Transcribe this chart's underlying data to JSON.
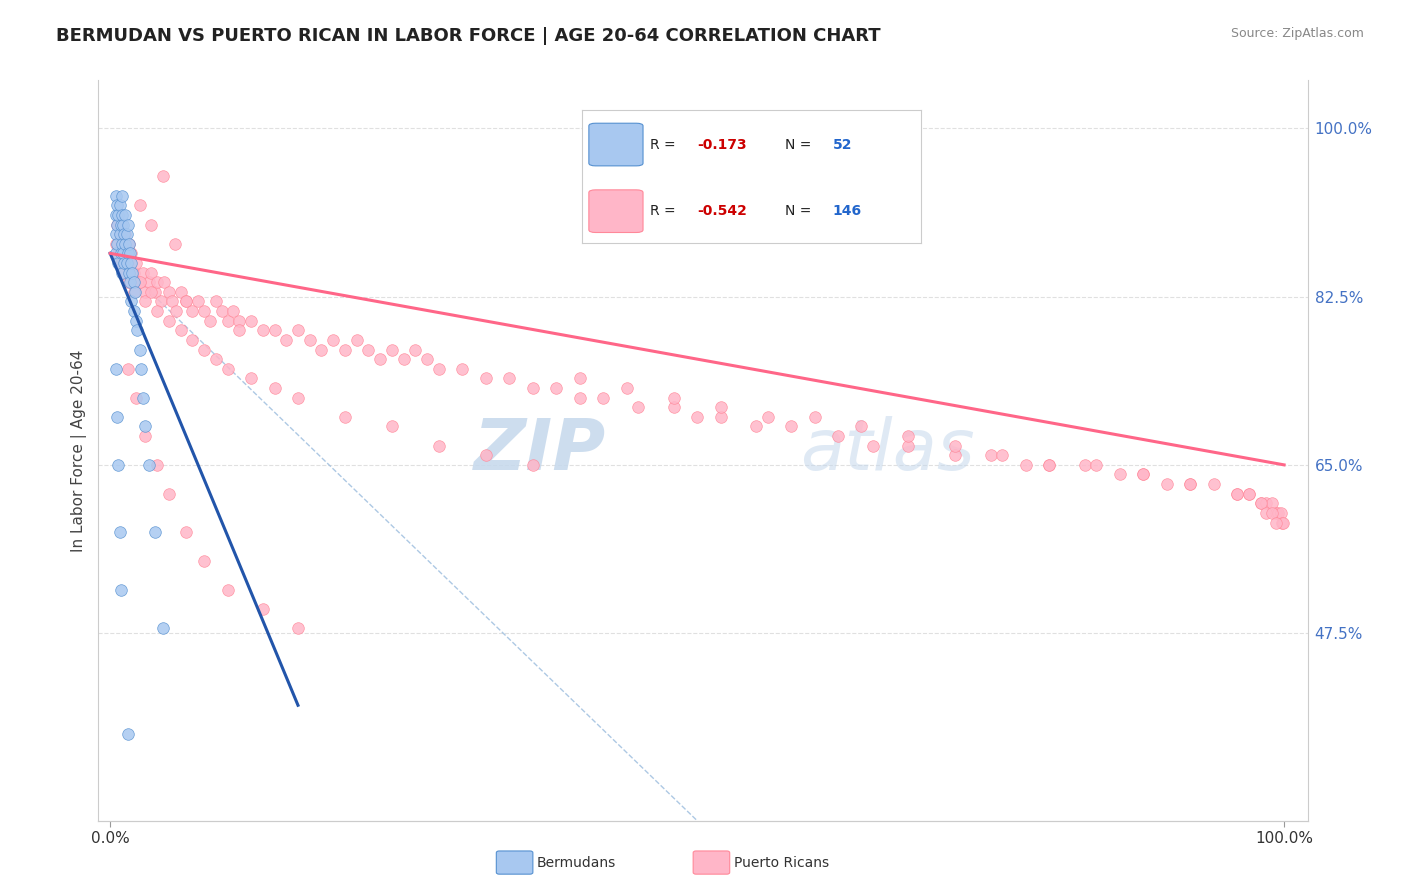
{
  "title": "BERMUDAN VS PUERTO RICAN IN LABOR FORCE | AGE 20-64 CORRELATION CHART",
  "source": "Source: ZipAtlas.com",
  "ylabel": "In Labor Force | Age 20-64",
  "xlim": [
    -0.01,
    1.02
  ],
  "ylim": [
    0.28,
    1.05
  ],
  "yticks": [
    0.475,
    0.65,
    0.825,
    1.0
  ],
  "ytick_labels": [
    "47.5%",
    "65.0%",
    "82.5%",
    "100.0%"
  ],
  "xtick_labels": [
    "0.0%",
    "100.0%"
  ],
  "legend_r_bermudan": "-0.173",
  "legend_n_bermudan": "52",
  "legend_r_puerto": "-0.542",
  "legend_n_puerto": "146",
  "color_bermudan_fill": "#a8c8f0",
  "color_bermudan_edge": "#5590d0",
  "color_bermudan_line": "#2255aa",
  "color_puerto_fill": "#ffb6c8",
  "color_puerto_edge": "#ff8899",
  "color_puerto_line": "#ff6688",
  "color_diag": "#99bbdd",
  "background_color": "#ffffff",
  "grid_color": "#dddddd",
  "watermark_color": "#c5d8ec",
  "bermudan_x": [
    0.005,
    0.005,
    0.005,
    0.005,
    0.006,
    0.006,
    0.006,
    0.007,
    0.007,
    0.008,
    0.008,
    0.009,
    0.009,
    0.01,
    0.01,
    0.01,
    0.01,
    0.011,
    0.011,
    0.012,
    0.012,
    0.013,
    0.013,
    0.014,
    0.014,
    0.015,
    0.015,
    0.016,
    0.016,
    0.017,
    0.017,
    0.018,
    0.018,
    0.019,
    0.02,
    0.02,
    0.021,
    0.022,
    0.023,
    0.025,
    0.026,
    0.028,
    0.03,
    0.033,
    0.038,
    0.045,
    0.005,
    0.006,
    0.007,
    0.008,
    0.009,
    0.015
  ],
  "bermudan_y": [
    0.93,
    0.91,
    0.89,
    0.87,
    0.92,
    0.9,
    0.88,
    0.91,
    0.86,
    0.92,
    0.89,
    0.9,
    0.87,
    0.93,
    0.91,
    0.88,
    0.85,
    0.9,
    0.87,
    0.89,
    0.86,
    0.91,
    0.88,
    0.89,
    0.86,
    0.9,
    0.87,
    0.88,
    0.85,
    0.87,
    0.84,
    0.86,
    0.82,
    0.85,
    0.84,
    0.81,
    0.83,
    0.8,
    0.79,
    0.77,
    0.75,
    0.72,
    0.69,
    0.65,
    0.58,
    0.48,
    0.75,
    0.7,
    0.65,
    0.58,
    0.52,
    0.37
  ],
  "puerto_x": [
    0.005,
    0.006,
    0.007,
    0.008,
    0.009,
    0.01,
    0.011,
    0.012,
    0.013,
    0.015,
    0.016,
    0.018,
    0.02,
    0.022,
    0.025,
    0.028,
    0.03,
    0.033,
    0.035,
    0.038,
    0.04,
    0.043,
    0.046,
    0.05,
    0.053,
    0.056,
    0.06,
    0.065,
    0.07,
    0.075,
    0.08,
    0.085,
    0.09,
    0.095,
    0.1,
    0.105,
    0.11,
    0.12,
    0.13,
    0.14,
    0.15,
    0.16,
    0.17,
    0.18,
    0.19,
    0.2,
    0.21,
    0.22,
    0.23,
    0.24,
    0.25,
    0.26,
    0.27,
    0.28,
    0.3,
    0.32,
    0.34,
    0.36,
    0.38,
    0.4,
    0.42,
    0.45,
    0.48,
    0.5,
    0.52,
    0.55,
    0.58,
    0.62,
    0.65,
    0.68,
    0.72,
    0.75,
    0.78,
    0.8,
    0.83,
    0.86,
    0.88,
    0.9,
    0.92,
    0.94,
    0.96,
    0.97,
    0.98,
    0.985,
    0.99,
    0.993,
    0.995,
    0.997,
    0.998,
    0.999,
    0.015,
    0.02,
    0.025,
    0.03,
    0.035,
    0.04,
    0.05,
    0.06,
    0.07,
    0.08,
    0.09,
    0.1,
    0.12,
    0.14,
    0.16,
    0.2,
    0.24,
    0.28,
    0.32,
    0.36,
    0.4,
    0.44,
    0.48,
    0.52,
    0.56,
    0.6,
    0.64,
    0.68,
    0.72,
    0.76,
    0.8,
    0.84,
    0.88,
    0.92,
    0.96,
    0.97,
    0.98,
    0.985,
    0.99,
    0.993,
    0.025,
    0.035,
    0.045,
    0.055,
    0.065,
    0.11,
    0.015,
    0.022,
    0.03,
    0.04,
    0.05,
    0.065,
    0.08,
    0.1,
    0.13,
    0.16
  ],
  "puerto_y": [
    0.88,
    0.9,
    0.87,
    0.89,
    0.86,
    0.88,
    0.85,
    0.87,
    0.89,
    0.86,
    0.88,
    0.87,
    0.85,
    0.86,
    0.84,
    0.85,
    0.83,
    0.84,
    0.85,
    0.83,
    0.84,
    0.82,
    0.84,
    0.83,
    0.82,
    0.81,
    0.83,
    0.82,
    0.81,
    0.82,
    0.81,
    0.8,
    0.82,
    0.81,
    0.8,
    0.81,
    0.8,
    0.8,
    0.79,
    0.79,
    0.78,
    0.79,
    0.78,
    0.77,
    0.78,
    0.77,
    0.78,
    0.77,
    0.76,
    0.77,
    0.76,
    0.77,
    0.76,
    0.75,
    0.75,
    0.74,
    0.74,
    0.73,
    0.73,
    0.72,
    0.72,
    0.71,
    0.71,
    0.7,
    0.7,
    0.69,
    0.69,
    0.68,
    0.67,
    0.67,
    0.66,
    0.66,
    0.65,
    0.65,
    0.65,
    0.64,
    0.64,
    0.63,
    0.63,
    0.63,
    0.62,
    0.62,
    0.61,
    0.61,
    0.61,
    0.6,
    0.6,
    0.6,
    0.59,
    0.59,
    0.84,
    0.83,
    0.84,
    0.82,
    0.83,
    0.81,
    0.8,
    0.79,
    0.78,
    0.77,
    0.76,
    0.75,
    0.74,
    0.73,
    0.72,
    0.7,
    0.69,
    0.67,
    0.66,
    0.65,
    0.74,
    0.73,
    0.72,
    0.71,
    0.7,
    0.7,
    0.69,
    0.68,
    0.67,
    0.66,
    0.65,
    0.65,
    0.64,
    0.63,
    0.62,
    0.62,
    0.61,
    0.6,
    0.6,
    0.59,
    0.92,
    0.9,
    0.95,
    0.88,
    0.82,
    0.79,
    0.75,
    0.72,
    0.68,
    0.65,
    0.62,
    0.58,
    0.55,
    0.52,
    0.5,
    0.48
  ],
  "bermudan_regr": [
    0.0,
    0.16,
    0.87,
    0.4
  ],
  "puerto_regr": [
    0.0,
    1.0,
    0.87,
    0.65
  ],
  "diag_line": [
    0.0,
    0.5,
    0.87,
    0.28
  ]
}
